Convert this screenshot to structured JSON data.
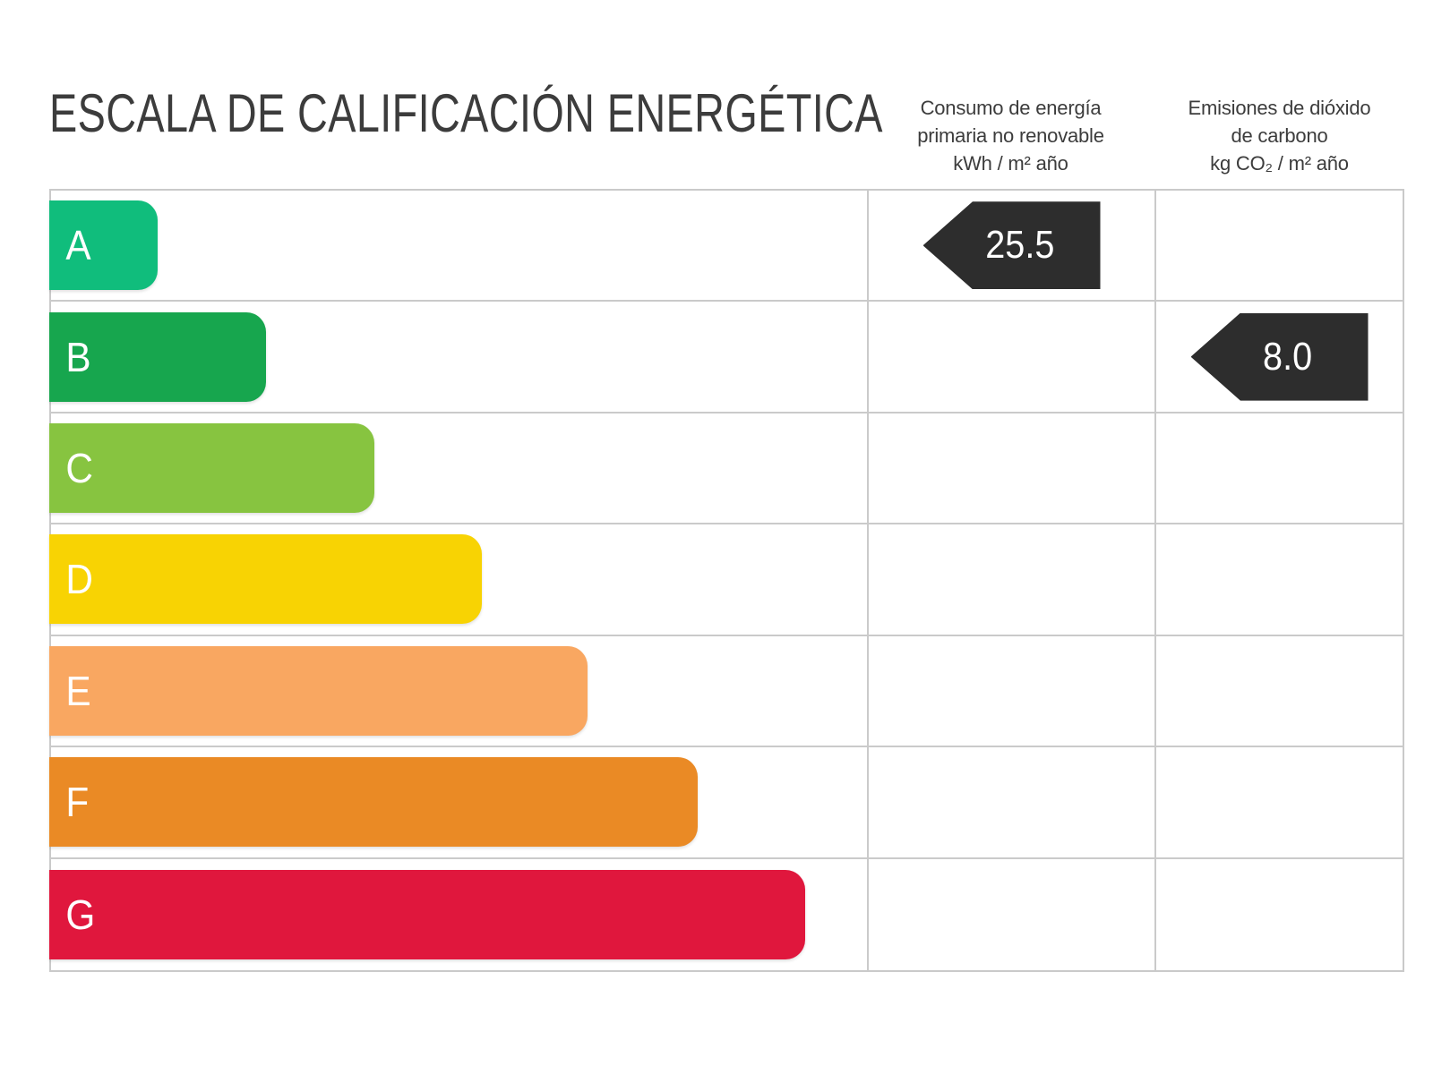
{
  "title": "ESCALA DE CALIFICACIÓN ENERGÉTICA",
  "column_headers": {
    "consumption": {
      "line1": "Consumo de energía",
      "line2": "primaria no renovable",
      "line3": "kWh / m² año"
    },
    "emissions": {
      "line1": "Emisiones de dióxido",
      "line2": "de carbono",
      "line3": "kg CO₂ / m² año"
    }
  },
  "ratings": [
    {
      "label": "A",
      "color": "#10bd7c",
      "width_css": "13.3%"
    },
    {
      "label": "B",
      "color": "#17a64e",
      "width_css": "26.6%"
    },
    {
      "label": "C",
      "color": "#87c440",
      "width_css": "39.9%"
    },
    {
      "label": "D",
      "color": "#f8d303",
      "width_css": "53.0%"
    },
    {
      "label": "E",
      "color": "#f9a761",
      "width_css": "66.0%"
    },
    {
      "label": "F",
      "color": "#ea8a25",
      "width_css": "79.5%"
    },
    {
      "label": "G",
      "color": "#e0173d",
      "width_css": "92.6%"
    }
  ],
  "indicators": {
    "consumption": {
      "row": "A",
      "value": "25.5"
    },
    "emissions": {
      "row": "B",
      "value": "8.0"
    }
  },
  "colors": {
    "arrow_bg": "#2d2d2d",
    "arrow_text": "#ffffff",
    "grid_line": "#cacaca",
    "heading_text": "#3c3c3c",
    "bar_text": "#ffffff"
  },
  "chart_data": {
    "type": "bar",
    "title": "ESCALA DE CALIFICACIÓN ENERGÉTICA",
    "orientation": "horizontal",
    "categories": [
      "A",
      "B",
      "C",
      "D",
      "E",
      "F",
      "G"
    ],
    "bar_relative_lengths": [
      0.13,
      0.27,
      0.4,
      0.53,
      0.66,
      0.8,
      0.93
    ],
    "bar_colors": [
      "#10bd7c",
      "#17a64e",
      "#87c440",
      "#f8d303",
      "#f9a761",
      "#ea8a25",
      "#e0173d"
    ],
    "value_columns": [
      {
        "name": "Consumo de energía primaria no renovable kWh / m² año",
        "rating": "A",
        "value": 25.5
      },
      {
        "name": "Emisiones de dióxido de carbono kg CO₂ / m² año",
        "rating": "B",
        "value": 8.0
      }
    ],
    "grid": true,
    "legend": false
  }
}
